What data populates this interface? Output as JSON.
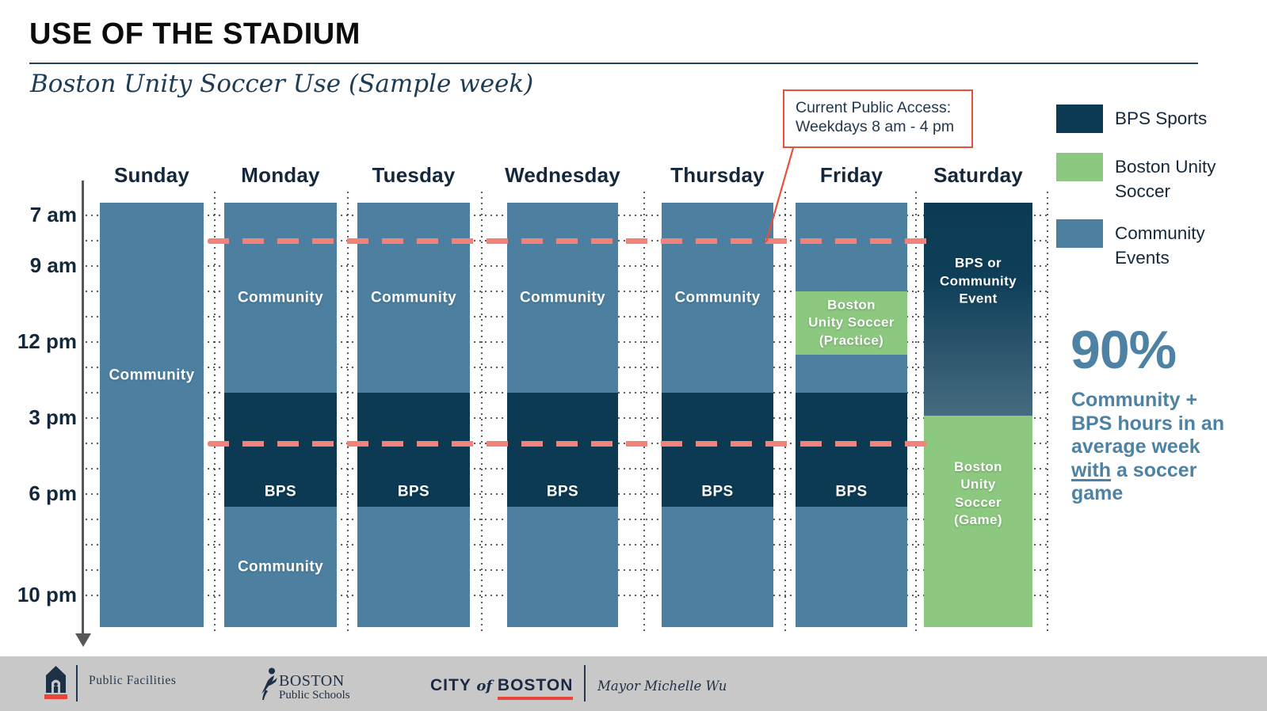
{
  "header": {
    "title": "USE OF THE STADIUM",
    "subtitle": "Boston Unity Soccer Use (Sample week)"
  },
  "callout": {
    "line1": "Current Public Access:",
    "line2": "Weekdays 8 am - 4 pm"
  },
  "legend": {
    "items": [
      {
        "label": "BPS Sports",
        "color": "#0c3a52"
      },
      {
        "label": "Boston Unity Soccer",
        "color": "#8cc87f"
      },
      {
        "label": "Community Events",
        "color": "#4d80a0"
      }
    ]
  },
  "stat": {
    "value": "90%",
    "lines": [
      "Community +",
      "BPS hours in an",
      "average week",
      "with a soccer",
      "game"
    ],
    "underlined_word": "with",
    "color": "#4d82a4"
  },
  "colors": {
    "bps_navy": "#0c3a52",
    "community_blue": "#4d80a0",
    "unity_green": "#8cc87f",
    "saturday_gradient_end": "#466b80",
    "access_dash": "#f0837a",
    "callout_red": "#e94f3d",
    "text_navy": "#15283b",
    "footer_gray": "#c8c8c8"
  },
  "chart_data": {
    "type": "schedule-stacked-columns",
    "title": "Boston Unity Soccer Use (Sample week)",
    "days": [
      "Sunday",
      "Monday",
      "Tuesday",
      "Wednesday",
      "Thursday",
      "Friday",
      "Saturday"
    ],
    "time_axis": {
      "orientation": "vertical-down",
      "tick_labels": [
        "7 am",
        "9 am",
        "12 pm",
        "3 pm",
        "6 pm",
        "10 pm"
      ],
      "tick_hours": [
        7,
        9,
        12,
        15,
        18,
        22
      ],
      "grid_start_hour": 7,
      "grid_end_hour": 22,
      "grid_step_hours": 1,
      "column_start_hour": 6.5,
      "column_end_hour": 23.25
    },
    "categories": {
      "community": {
        "label": "Community Events",
        "color": "#4d80a0"
      },
      "bps": {
        "label": "BPS Sports",
        "color": "#0c3a52"
      },
      "unity": {
        "label": "Boston Unity Soccer",
        "color": "#8cc87f"
      }
    },
    "public_access_window": {
      "note": "Current Public Access: Weekdays 8 am - 4 pm",
      "line_hours": [
        8,
        16
      ],
      "line_color": "#f0837a",
      "applies_to": "Monday through Friday"
    },
    "columns": [
      {
        "day": "Sunday",
        "blocks": [
          {
            "start": 6.5,
            "end": 23.25,
            "category": "community",
            "lines": [
              "Community"
            ],
            "label_hour": 13.3
          }
        ]
      },
      {
        "day": "Monday",
        "blocks": [
          {
            "start": 6.5,
            "end": 14,
            "category": "community",
            "lines": [
              "Community"
            ]
          },
          {
            "start": 14,
            "end": 18.5,
            "category": "bps",
            "lines": [
              "BPS"
            ],
            "label_hour": 17.9
          },
          {
            "start": 18.5,
            "end": 23.25,
            "category": "community",
            "lines": [
              "Community"
            ]
          }
        ]
      },
      {
        "day": "Tuesday",
        "blocks": [
          {
            "start": 6.5,
            "end": 14,
            "category": "community",
            "lines": [
              "Community"
            ]
          },
          {
            "start": 14,
            "end": 18.5,
            "category": "bps",
            "lines": [
              "BPS"
            ],
            "label_hour": 17.9
          },
          {
            "start": 18.5,
            "end": 23.25,
            "category": "community",
            "lines": []
          }
        ]
      },
      {
        "day": "Wednesday",
        "blocks": [
          {
            "start": 6.5,
            "end": 14,
            "category": "community",
            "lines": [
              "Community"
            ]
          },
          {
            "start": 14,
            "end": 18.5,
            "category": "bps",
            "lines": [
              "BPS"
            ],
            "label_hour": 17.9
          },
          {
            "start": 18.5,
            "end": 23.25,
            "category": "community",
            "lines": []
          }
        ]
      },
      {
        "day": "Thursday",
        "blocks": [
          {
            "start": 6.5,
            "end": 14,
            "category": "community",
            "lines": [
              "Community"
            ]
          },
          {
            "start": 14,
            "end": 18.5,
            "category": "bps",
            "lines": [
              "BPS"
            ],
            "label_hour": 17.9
          },
          {
            "start": 18.5,
            "end": 23.25,
            "category": "community",
            "lines": []
          }
        ]
      },
      {
        "day": "Friday",
        "blocks": [
          {
            "start": 6.5,
            "end": 10,
            "category": "community",
            "lines": []
          },
          {
            "start": 10,
            "end": 12.5,
            "category": "unity",
            "lines": [
              "Boston",
              "Unity Soccer",
              "(Practice)"
            ]
          },
          {
            "start": 12.5,
            "end": 14,
            "category": "community",
            "lines": []
          },
          {
            "start": 14,
            "end": 18.5,
            "category": "bps",
            "lines": [
              "BPS"
            ],
            "label_hour": 17.9
          },
          {
            "start": 18.5,
            "end": 23.25,
            "category": "community",
            "lines": []
          }
        ]
      },
      {
        "day": "Saturday",
        "blocks": [
          {
            "start": 6.5,
            "end": 14.9,
            "category": "bps",
            "gradient": [
              "#0c3a52",
              "#0e3e58",
              "#466b80"
            ],
            "lines": [
              "BPS or",
              "Community",
              "Event"
            ],
            "label_hour": 9.6
          },
          {
            "start": 14.9,
            "end": 23.25,
            "category": "unity",
            "lines": [
              "Boston",
              "Unity",
              "Soccer",
              "(Game)"
            ],
            "label_hour": 18.0
          }
        ]
      }
    ]
  },
  "footer": {
    "public_facilities": "Public Facilities",
    "bps_name": "BOSTON",
    "bps_sub": "Public Schools",
    "city_word1": "CITY",
    "city_word2": "of",
    "city_word3": "BOSTON",
    "mayor": "Mayor Michelle Wu"
  }
}
